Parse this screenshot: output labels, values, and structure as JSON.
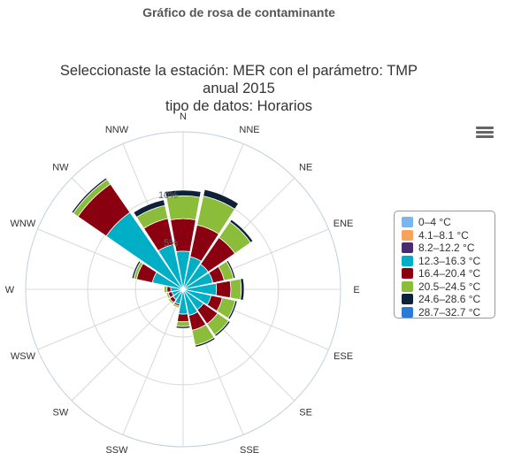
{
  "page_heading": "Gráfico de rosa de contaminante",
  "chart_data": {
    "type": "windrose",
    "title_lines": [
      "Seleccionaste la estación: MER con el parámetro: TMP",
      "anual 2015",
      "tipo de datos: Horarios"
    ],
    "directions": [
      "N",
      "NNE",
      "NE",
      "ENE",
      "E",
      "ESE",
      "SE",
      "SSE",
      "S",
      "SSW",
      "SW",
      "WSW",
      "W",
      "WNW",
      "NW",
      "NNW"
    ],
    "radial_ticks": [
      {
        "value": 5,
        "label": "5%"
      },
      {
        "value": 10,
        "label": "10%"
      }
    ],
    "radial_max": 16.5,
    "series": [
      {
        "name": "0–4 °C",
        "color": "#7cb5ec",
        "values": [
          0,
          0,
          0,
          0,
          0,
          0,
          0,
          0,
          0,
          0,
          0,
          0,
          0,
          0,
          0,
          0
        ]
      },
      {
        "name": "4.1–8.1 °C",
        "color": "#f7a35c",
        "values": [
          0,
          0,
          0,
          0,
          0,
          0,
          0,
          0,
          0,
          0,
          0,
          0,
          0,
          0,
          0,
          0
        ]
      },
      {
        "name": "8.2–12.2 °C",
        "color": "#492970",
        "values": [
          0.2,
          0.2,
          0.2,
          0.2,
          0.3,
          0.2,
          0.2,
          0.2,
          0.2,
          0.2,
          0.3,
          0.2,
          0.2,
          0.2,
          0.2,
          0.2
        ]
      },
      {
        "name": "12.3–16.3 °C",
        "color": "#00aec6",
        "values": [
          3.8,
          3.3,
          3.0,
          3.0,
          3.2,
          2.8,
          2.4,
          2.6,
          2.4,
          1.4,
          1.0,
          1.0,
          1.1,
          3.1,
          9.6,
          4.6
        ]
      },
      {
        "name": "16.4–20.4 °C",
        "color": "#8b0010",
        "values": [
          3.4,
          3.4,
          3.4,
          1.2,
          1.5,
          1.2,
          1.8,
          1.6,
          0.8,
          0.2,
          0.4,
          0.4,
          0.4,
          1.7,
          3.6,
          2.8
        ]
      },
      {
        "name": "20.5–24.5 °C",
        "color": "#8bbc3a",
        "values": [
          2.4,
          3.1,
          2.0,
          1.0,
          1.1,
          1.4,
          1.4,
          1.6,
          0.5,
          0.2,
          0.2,
          0.2,
          0.3,
          0.3,
          0.6,
          1.4
        ]
      },
      {
        "name": "24.6–28.6 °C",
        "color": "#0d2238",
        "values": [
          0.6,
          0.7,
          0.3,
          0.2,
          0.3,
          0.2,
          0.2,
          0.2,
          0.2,
          0,
          0,
          0,
          0,
          0.2,
          0.2,
          0.6
        ]
      },
      {
        "name": "28.7–32.7 °C",
        "color": "#2b7bd4",
        "values": [
          0,
          0,
          0,
          0,
          0,
          0,
          0,
          0,
          0,
          0,
          0,
          0,
          0,
          0,
          0,
          0
        ]
      }
    ],
    "legend_position": "right"
  }
}
